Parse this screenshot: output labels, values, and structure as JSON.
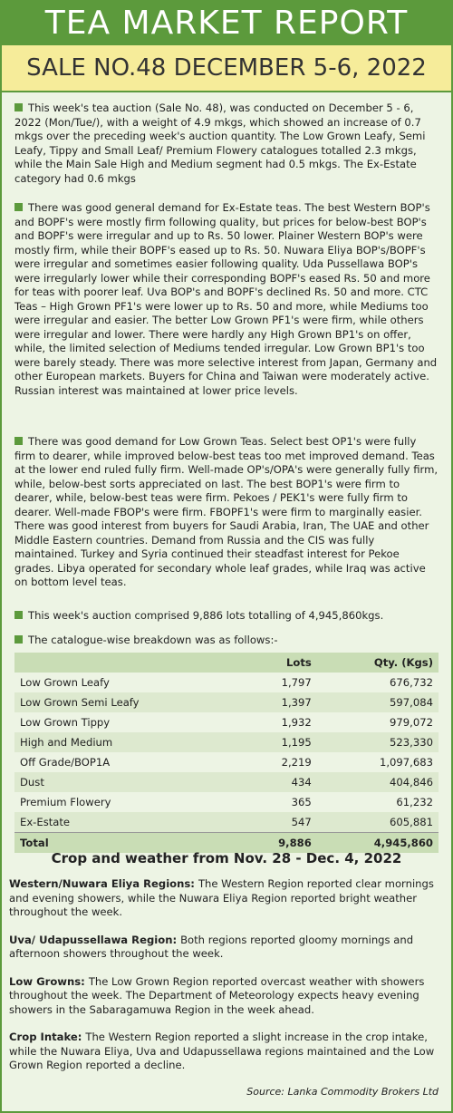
{
  "header": {
    "title": "TEA MARKET REPORT",
    "subtitle": "SALE NO.48 DECEMBER 5-6, 2022"
  },
  "paragraphs": [
    "This week's tea auction (Sale No. 48), was conducted on December 5 - 6, 2022 (Mon/Tue/), with a weight of 4.9 mkgs, which showed an increase of 0.7 mkgs over the preceding week's auction quantity. The Low Grown Leafy, Semi Leafy, Tippy and Small Leaf/ Premium Flowery catalogues totalled 2.3 mkgs, while the Main Sale High and Medium segment had 0.5 mkgs. The Ex-Estate category had 0.6 mkgs",
    "There was good general demand for Ex-Estate teas. The best Western BOP's and BOPF's were mostly firm following quality, but prices for below-best BOP's and BOPF's were irregular and up to Rs. 50 lower. Plainer Western BOP's were mostly firm, while their BOPF's eased up to Rs. 50. Nuwara Eliya BOP's/BOPF's were irregular and sometimes easier following quality. Uda Pussellawa BOP's were irregularly lower while their corresponding BOPF's eased Rs. 50 and more for teas with poorer leaf. Uva BOP's and BOPF's declined Rs. 50 and more. CTC Teas – High Grown PF1's were lower up to Rs. 50 and more, while Mediums too were irregular and easier. The better Low Grown PF1's were firm, while others were irregular and lower. There were hardly any High Grown BP1's on offer, while, the limited selection of Mediums tended irregular. Low Grown BP1's too were barely steady. There was more selective interest from Japan, Germany and other European markets. Buyers for China and Taiwan were moderately active. Russian interest was maintained at lower price levels.",
    "There was good demand for Low Grown Teas. Select best OP1's were fully firm to dearer, while improved below-best teas too met improved demand. Teas at the lower end ruled fully firm. Well-made OP's/OPA's were generally fully firm, while, below-best sorts appreciated on last. The best BOP1's were firm to dearer, while, below-best teas were firm. Pekoes / PEK1's were fully firm to dearer. Well-made FBOP's were firm. FBOPF1's were firm to marginally easier. There was good interest from buyers for Saudi Arabia, Iran, The UAE and other Middle Eastern countries. Demand from Russia and the CIS was fully maintained. Turkey and Syria continued their steadfast interest for Pekoe grades. Libya operated for secondary whole leaf grades, while Iraq was active on bottom level teas.",
    "This week's auction comprised 9,886 lots totalling of 4,945,860kgs.",
    "The catalogue-wise breakdown was as follows:-"
  ],
  "table": {
    "columns": [
      "Lots",
      "Qty. (Kgs)"
    ],
    "rows": [
      [
        "Low Grown Leafy",
        "1,797",
        "676,732"
      ],
      [
        "Low Grown Semi Leafy",
        "1,397",
        "597,084"
      ],
      [
        "Low Grown Tippy",
        "1,932",
        "979,072"
      ],
      [
        "High and Medium",
        "1,195",
        "523,330"
      ],
      [
        "Off Grade/BOP1A",
        "2,219",
        "1,097,683"
      ],
      [
        "Dust",
        "434",
        "404,846"
      ],
      [
        "Premium Flowery",
        "365",
        "61,232"
      ],
      [
        "Ex-Estate",
        "547",
        "605,881"
      ]
    ],
    "total": [
      "Total",
      "9,886",
      "4,945,860"
    ]
  },
  "crop": {
    "heading": "Crop and weather from  Nov. 28 - Dec. 4, 2022",
    "sections": [
      {
        "label": "Western/Nuwara Eliya Regions:",
        "text": "The Western Region reported clear mornings and evening showers, while the Nuwara Eliya Region reported bright weather throughout the week."
      },
      {
        "label": "Uva/ Udapussellawa Region:",
        "text": "Both regions reported gloomy mornings and afternoon showers throughout the week."
      },
      {
        "label": "Low Growns:",
        "text": "The Low Grown Region reported overcast weather with showers throughout the week. The Department of Meteorology expects heavy evening showers in the Sabaragamuwa Region in the week ahead."
      },
      {
        "label": "Crop Intake:",
        "text": "The Western Region reported a slight increase in the crop intake, while the Nuwara Eliya, Uva and Udapussellawa regions maintained and the Low Grown Region reported a decline."
      }
    ]
  },
  "source": "Source: Lanka Commodity Brokers Ltd"
}
